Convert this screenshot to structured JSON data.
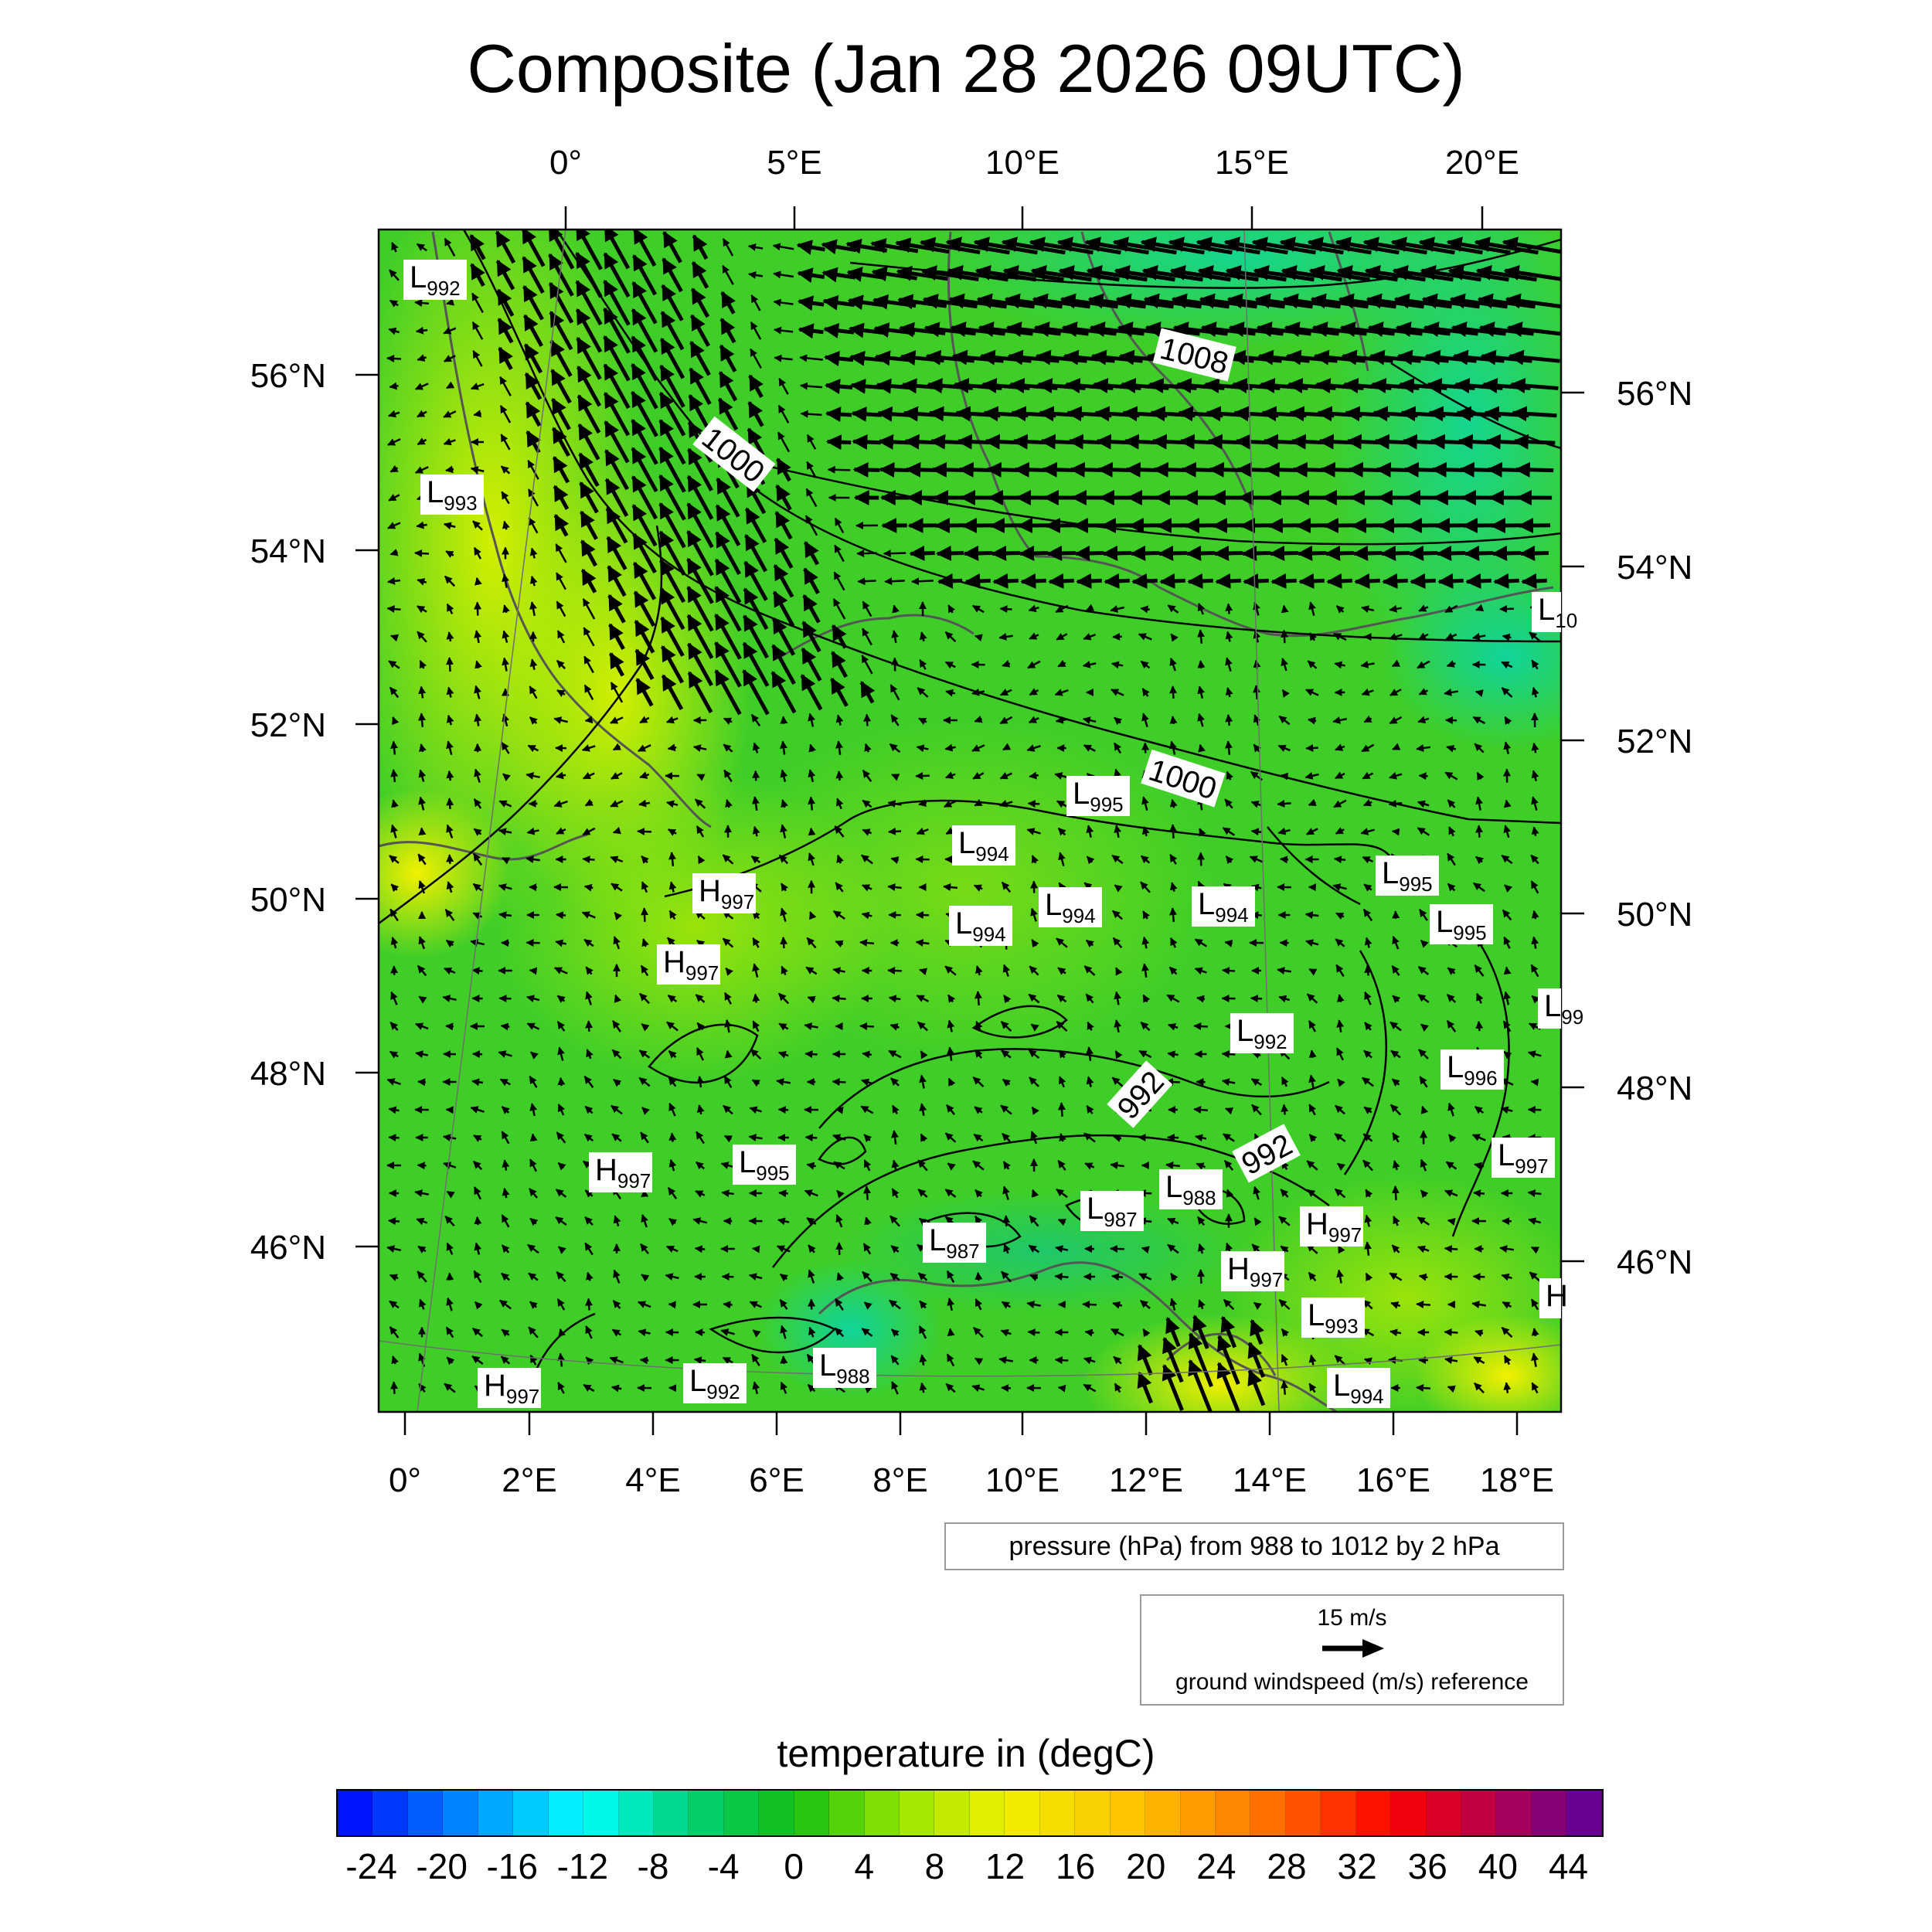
{
  "title": "Composite (Jan 28 2026 09UTC)",
  "top_lon_ticks": [
    "0°",
    "5°E",
    "10°E",
    "15°E",
    "20°E"
  ],
  "bottom_lon_ticks": [
    "0°",
    "2°E",
    "4°E",
    "6°E",
    "8°E",
    "10°E",
    "12°E",
    "14°E",
    "16°E",
    "18°E"
  ],
  "left_lat_ticks": [
    "56°N",
    "54°N",
    "52°N",
    "50°N",
    "48°N",
    "46°N"
  ],
  "right_lat_ticks": [
    "56°N",
    "54°N",
    "52°N",
    "50°N",
    "48°N",
    "46°N"
  ],
  "contour_labels": [
    "1008",
    "1000",
    "1000",
    "992",
    "992"
  ],
  "pressure_centers": [
    {
      "type": "L",
      "value": "992"
    },
    {
      "type": "L",
      "value": "993"
    },
    {
      "type": "L",
      "value": "10"
    },
    {
      "type": "L",
      "value": "995"
    },
    {
      "type": "L",
      "value": "994"
    },
    {
      "type": "H",
      "value": "997"
    },
    {
      "type": "L",
      "value": "994"
    },
    {
      "type": "L",
      "value": "994"
    },
    {
      "type": "L",
      "value": "994"
    },
    {
      "type": "L",
      "value": "995"
    },
    {
      "type": "L",
      "value": "995"
    },
    {
      "type": "H",
      "value": "997"
    },
    {
      "type": "L",
      "value": "99"
    },
    {
      "type": "L",
      "value": "992"
    },
    {
      "type": "L",
      "value": "996"
    },
    {
      "type": "H",
      "value": "997"
    },
    {
      "type": "L",
      "value": "995"
    },
    {
      "type": "L",
      "value": "997"
    },
    {
      "type": "L",
      "value": "988"
    },
    {
      "type": "L",
      "value": "987"
    },
    {
      "type": "L",
      "value": "987"
    },
    {
      "type": "H",
      "value": "997"
    },
    {
      "type": "H",
      "value": "997"
    },
    {
      "type": "H",
      "value": ""
    },
    {
      "type": "L",
      "value": "993"
    },
    {
      "type": "L",
      "value": "988"
    },
    {
      "type": "L",
      "value": "992"
    },
    {
      "type": "H",
      "value": "997"
    },
    {
      "type": "L",
      "value": "994"
    }
  ],
  "pressure_legend": "pressure (hPa) from 988 to 1012 by 2 hPa",
  "wind_reference": {
    "speed": "15 m/s",
    "label": "ground windspeed (m/s) reference"
  },
  "colorbar": {
    "title": "temperature in (degC)",
    "tick_labels": [
      "-24",
      "-20",
      "-16",
      "-12",
      "-8",
      "-4",
      "0",
      "4",
      "8",
      "12",
      "16",
      "20",
      "24",
      "28",
      "32",
      "36",
      "40",
      "44"
    ],
    "min": -26,
    "max": 46,
    "step": 2
  },
  "colors": {
    "field_green": "#33cc2e",
    "warm_yellow": "#e6f000",
    "cool_teal": "#13d386",
    "contour": "#000000",
    "coast": "#555555"
  }
}
